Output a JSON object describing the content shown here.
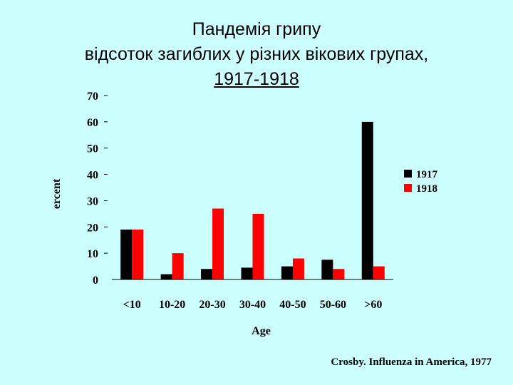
{
  "title_lines": [
    "Пандемія грипу",
    "відсоток загиблих у різних вікових групах,",
    "1917-1918"
  ],
  "citation": "Crosby. Influenza in America, 1977",
  "chart_data": {
    "type": "bar",
    "categories": [
      "<10",
      "10-20",
      "20-30",
      "30-40",
      "40-50",
      "50-60",
      ">60"
    ],
    "series": [
      {
        "name": "1917",
        "values": [
          19,
          2,
          4,
          4.5,
          5,
          7.5,
          60
        ],
        "color": "#000000"
      },
      {
        "name": "1918",
        "values": [
          19,
          10,
          27,
          25,
          8,
          4,
          5
        ],
        "color": "#ff0000"
      }
    ],
    "xlabel": "Age",
    "ylabel": "ercent",
    "ylim": [
      0,
      70
    ],
    "yticks": [
      0,
      10,
      20,
      30,
      40,
      50,
      60,
      70
    ],
    "grid": false,
    "legend": "right"
  }
}
